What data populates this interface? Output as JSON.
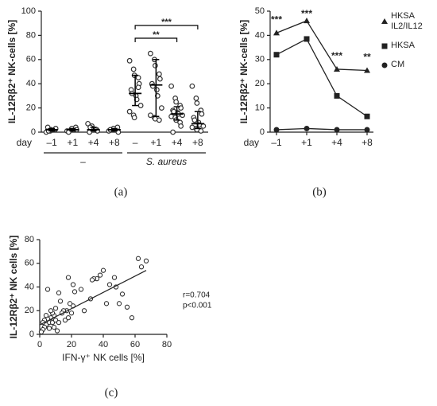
{
  "chart_data": [
    {
      "type": "dotplot",
      "panel_label": "(a)",
      "ylabel": "IL-12Rβ2⁺ NK-cells [%]",
      "xlabel": "day",
      "ylim": [
        0,
        100
      ],
      "yticks": [
        0,
        20,
        40,
        60,
        80,
        100
      ],
      "categories": [
        "–1",
        "+1",
        "+4",
        "+8",
        "–",
        "+1",
        "+4",
        "+8"
      ],
      "groups": [
        {
          "label": "–",
          "size": 4,
          "style": "normal"
        },
        {
          "label": "S. aureus",
          "size": 4,
          "style": "italic"
        }
      ],
      "points": [
        [
          0,
          1,
          2,
          2,
          3,
          4,
          1
        ],
        [
          1,
          2,
          3,
          4,
          2,
          0
        ],
        [
          7,
          5,
          3,
          2,
          1,
          0,
          4
        ],
        [
          1,
          2,
          3,
          4,
          0,
          2
        ],
        [
          59,
          52,
          47,
          45,
          40,
          35,
          32,
          30,
          27,
          22,
          17,
          14,
          12,
          37
        ],
        [
          65,
          60,
          55,
          48,
          44,
          40,
          38,
          35,
          30,
          20,
          14,
          12,
          11,
          10
        ],
        [
          38,
          28,
          25,
          22,
          20,
          18,
          17,
          16,
          15,
          14,
          13,
          12,
          10,
          8,
          5,
          0
        ],
        [
          38,
          28,
          24,
          18,
          15,
          12,
          10,
          8,
          6,
          5,
          4,
          3,
          2,
          1
        ]
      ],
      "medians": [
        2,
        2,
        2,
        2,
        32,
        39,
        15,
        7
      ],
      "q1": [
        1,
        1,
        1,
        1,
        22,
        13,
        10,
        3
      ],
      "q3": [
        3,
        3,
        4,
        3,
        47,
        60,
        21,
        17
      ],
      "significance": [
        {
          "text": "**",
          "from": 4,
          "to": 6
        },
        {
          "text": "***",
          "from": 4,
          "to": 7
        }
      ],
      "color": "#333333"
    },
    {
      "type": "line",
      "panel_label": "(b)",
      "ylabel": "IL-12Rβ2⁺ NK-cells [%]",
      "xlabel": "day",
      "ylim": [
        0,
        50
      ],
      "yticks": [
        0,
        10,
        20,
        30,
        40,
        50
      ],
      "categories": [
        "–1",
        "+1",
        "+4",
        "+8"
      ],
      "stars": [
        "***",
        "***",
        "***",
        "**"
      ],
      "series": [
        {
          "name": "HKSA IL2/IL12",
          "marker": "triangle",
          "color": "#222222",
          "values": [
            41,
            46,
            26,
            25.5
          ]
        },
        {
          "name": "HKSA",
          "marker": "square",
          "color": "#222222",
          "values": [
            32,
            38.5,
            15,
            6.5
          ]
        },
        {
          "name": "CM",
          "marker": "circle",
          "color": "#222222",
          "values": [
            1,
            1.5,
            1,
            1
          ]
        }
      ]
    },
    {
      "type": "scatter",
      "panel_label": "(c)",
      "xlabel": "IFN-γ⁺ NK cells [%]",
      "ylabel": "IL-12Rβ2⁺ NK cells [%]",
      "xlim": [
        0,
        80
      ],
      "xticks": [
        0,
        20,
        40,
        60,
        80
      ],
      "ylim": [
        0,
        80
      ],
      "yticks": [
        0,
        20,
        40,
        60,
        80
      ],
      "annotations": [
        "r=0.704",
        "p<0.001"
      ],
      "x": [
        62,
        67,
        64,
        58,
        55,
        52,
        47,
        44,
        42,
        40,
        38,
        36,
        34,
        33,
        32,
        26,
        22,
        21,
        18,
        20,
        21,
        19,
        17,
        15,
        13,
        12,
        10,
        9,
        8,
        7,
        6,
        5,
        4,
        3,
        4,
        3,
        2,
        1,
        2,
        5,
        6,
        8,
        10,
        12,
        14,
        16,
        18,
        11,
        9,
        7,
        28,
        48,
        50
      ],
      "y": [
        64,
        62,
        57,
        14,
        23,
        34,
        48,
        42,
        26,
        54,
        50,
        47,
        47,
        46,
        30,
        38,
        36,
        42,
        48,
        18,
        24,
        26,
        20,
        20,
        28,
        35,
        22,
        16,
        18,
        14,
        10,
        13,
        16,
        12,
        8,
        6,
        4,
        2,
        10,
        38,
        5,
        10,
        12,
        10,
        18,
        12,
        14,
        3,
        6,
        20,
        20,
        40,
        26
      ],
      "fit_line": {
        "x": [
          0,
          67
        ],
        "y": [
          8,
          54
        ]
      },
      "color": "#333333"
    }
  ]
}
